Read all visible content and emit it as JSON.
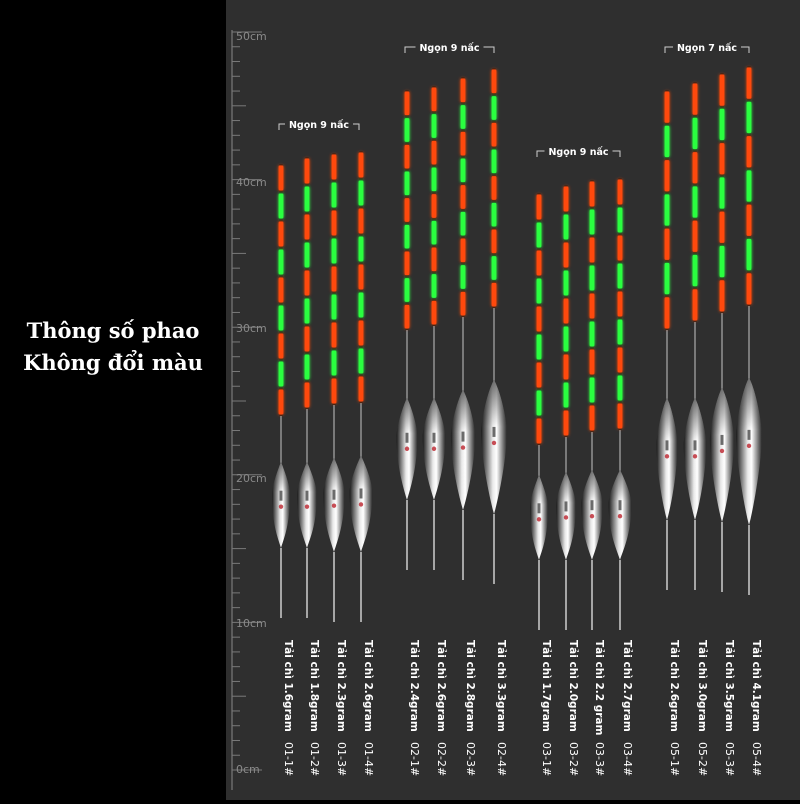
{
  "left_panel": {
    "line1": "Thông số phao",
    "line2": "Không đổi màu"
  },
  "ruler": {
    "labels": [
      "50cm",
      "40cm",
      "30cm",
      "20cm",
      "10cm",
      "0cm"
    ]
  },
  "groups": [
    {
      "label": "Ngọn 9 nấc",
      "floats": [
        {
          "code": "01-1#",
          "weight": "Tải chì 1.6gram"
        },
        {
          "code": "01-2#",
          "weight": "Tải chì 1.8gram"
        },
        {
          "code": "01-3#",
          "weight": "Tải chì 2.3gram"
        },
        {
          "code": "01-4#",
          "weight": "Tải chì 2.6gram"
        }
      ]
    },
    {
      "label": "Ngọn 9 nấc",
      "floats": [
        {
          "code": "02-1#",
          "weight": "Tải chì 2.4gram"
        },
        {
          "code": "02-2#",
          "weight": "Tải chì 2.6gram"
        },
        {
          "code": "02-3#",
          "weight": "Tải chì 2.8gram"
        },
        {
          "code": "02-4#",
          "weight": "Tải chì 3.3gram"
        }
      ]
    },
    {
      "label": "Ngọn 9 nấc",
      "floats": [
        {
          "code": "03-1#",
          "weight": "Tải chì 1.7gram"
        },
        {
          "code": "03-2#",
          "weight": "Tải chì 2.0gram"
        },
        {
          "code": "03-3#",
          "weight": "Tải chì 2.2 gram"
        },
        {
          "code": "03-4#",
          "weight": "Tải chì 2.7gram"
        }
      ]
    },
    {
      "label": "Ngọn 7 nấc",
      "floats": [
        {
          "code": "05-1#",
          "weight": "Tải chì 2.6gram"
        },
        {
          "code": "05-2#",
          "weight": "Tải chì 3.0gram"
        },
        {
          "code": "05-3#",
          "weight": "Tải chì 3.5gram"
        },
        {
          "code": "05-4#",
          "weight": "Tải chì 4.1gram"
        }
      ]
    }
  ],
  "colors": {
    "background_left": "#000000",
    "background_right": "#2f2f2f",
    "tip_orange": "#ff4a10",
    "tip_green": "#2cff40",
    "ruler": "#8a8a8a"
  }
}
